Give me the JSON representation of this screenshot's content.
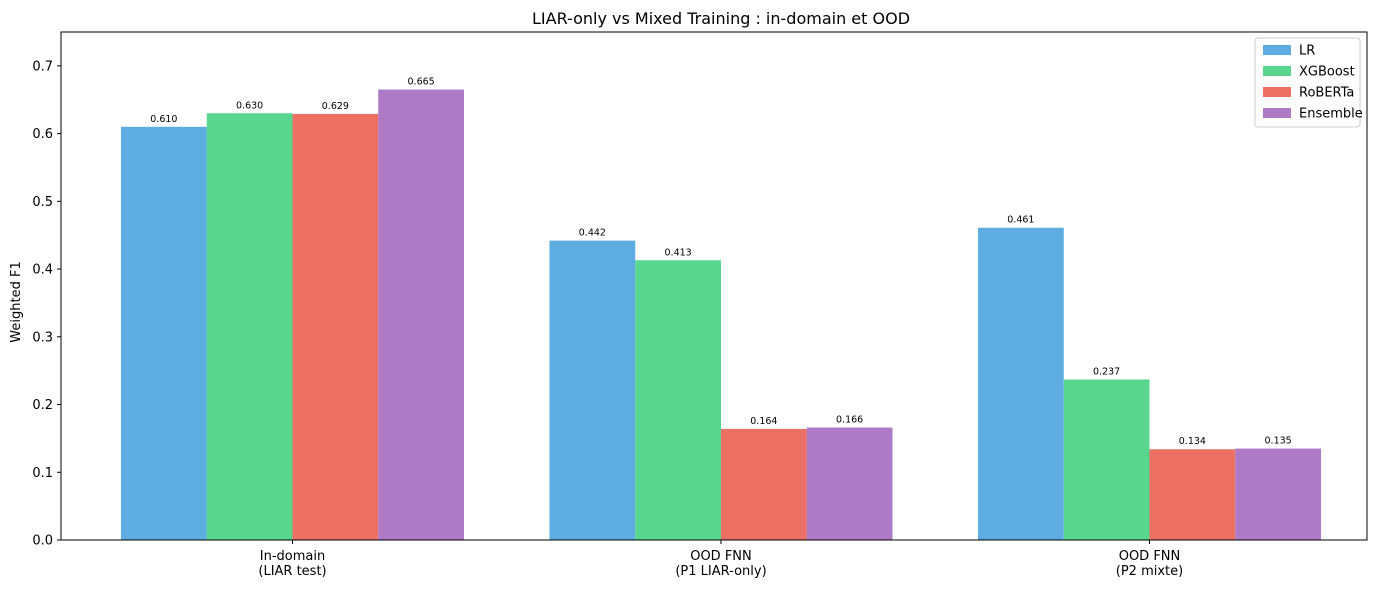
{
  "chart_data": {
    "type": "bar",
    "title": "LIAR-only vs Mixed Training : in-domain et OOD",
    "xlabel": "",
    "ylabel": "Weighted F1",
    "ylim": [
      0,
      0.75
    ],
    "yticks": [
      "0.0",
      "0.1",
      "0.2",
      "0.3",
      "0.4",
      "0.5",
      "0.6",
      "0.7"
    ],
    "categories": [
      [
        "In-domain",
        "(LIAR test)"
      ],
      [
        "OOD FNN",
        "(P1 LIAR-only)"
      ],
      [
        "OOD FNN",
        "(P2 mixte)"
      ]
    ],
    "series": [
      {
        "name": "LR",
        "color": "#5dade2",
        "values": [
          0.61,
          0.442,
          0.461
        ]
      },
      {
        "name": "XGBoost",
        "color": "#58d68d",
        "values": [
          0.63,
          0.413,
          0.237
        ]
      },
      {
        "name": "RoBERTa",
        "color": "#ec7063",
        "values": [
          0.629,
          0.164,
          0.134
        ]
      },
      {
        "name": "Ensemble",
        "color": "#af7ac5",
        "values": [
          0.665,
          0.166,
          0.135
        ]
      }
    ],
    "legend": "top-right",
    "grid": false
  }
}
